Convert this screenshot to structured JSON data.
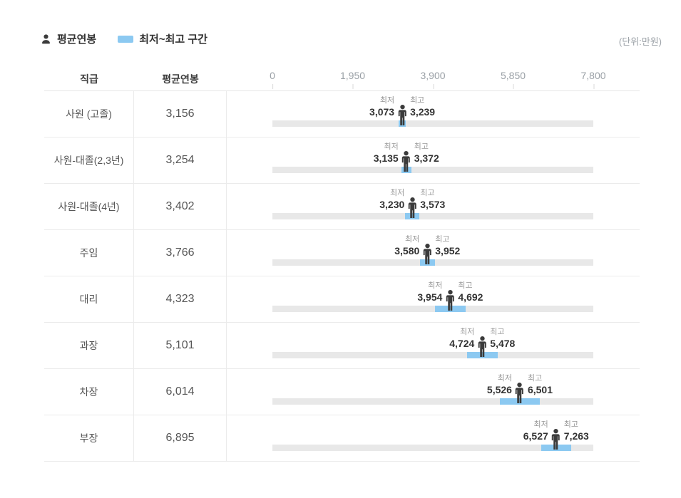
{
  "legend": {
    "avg_label": "평균연봉",
    "range_label": "최저~최고 구간"
  },
  "unit_note": "(단위:만원)",
  "header": {
    "grade": "직급",
    "avg": "평균연봉"
  },
  "labels": {
    "min": "최저",
    "max": "최고"
  },
  "axis": {
    "tick_labels": [
      "0",
      "1,950",
      "3,900",
      "5,850",
      "7,800"
    ],
    "tick_values": [
      0,
      1950,
      3900,
      5850,
      7800
    ],
    "max_value": 7800
  },
  "colors": {
    "range_blue": "#8cc9f1",
    "track_gray": "#e8e8e8",
    "person_dark": "#3b3b3b"
  },
  "rows": [
    {
      "grade": "사원 (고졸)",
      "avg": 3156,
      "min": 3073,
      "max": 3239
    },
    {
      "grade": "사원-대졸(2,3년)",
      "avg": 3254,
      "min": 3135,
      "max": 3372
    },
    {
      "grade": "사원-대졸(4년)",
      "avg": 3402,
      "min": 3230,
      "max": 3573
    },
    {
      "grade": "주임",
      "avg": 3766,
      "min": 3580,
      "max": 3952
    },
    {
      "grade": "대리",
      "avg": 4323,
      "min": 3954,
      "max": 4692
    },
    {
      "grade": "과장",
      "avg": 5101,
      "min": 4724,
      "max": 5478
    },
    {
      "grade": "차장",
      "avg": 6014,
      "min": 5526,
      "max": 6501
    },
    {
      "grade": "부장",
      "avg": 6895,
      "min": 6527,
      "max": 7263
    }
  ],
  "chart_data": {
    "type": "bar",
    "variant": "horizontal min-max range bars with average marker",
    "unit": "만원",
    "categories": [
      "사원 (고졸)",
      "사원-대졸(2,3년)",
      "사원-대졸(4년)",
      "주임",
      "대리",
      "과장",
      "차장",
      "부장"
    ],
    "series": [
      {
        "name": "평균연봉",
        "values": [
          3156,
          3254,
          3402,
          3766,
          4323,
          5101,
          6014,
          6895
        ]
      },
      {
        "name": "최저",
        "values": [
          3073,
          3135,
          3230,
          3580,
          3954,
          4724,
          5526,
          6527
        ]
      },
      {
        "name": "최고",
        "values": [
          3239,
          3372,
          3573,
          3952,
          4692,
          5478,
          6501,
          7263
        ]
      }
    ],
    "xlabel": "",
    "ylabel": "직급",
    "xlim": [
      0,
      7800
    ],
    "x_ticks": [
      0,
      1950,
      3900,
      5850,
      7800
    ],
    "grid": false,
    "legend_position": "top-left"
  }
}
